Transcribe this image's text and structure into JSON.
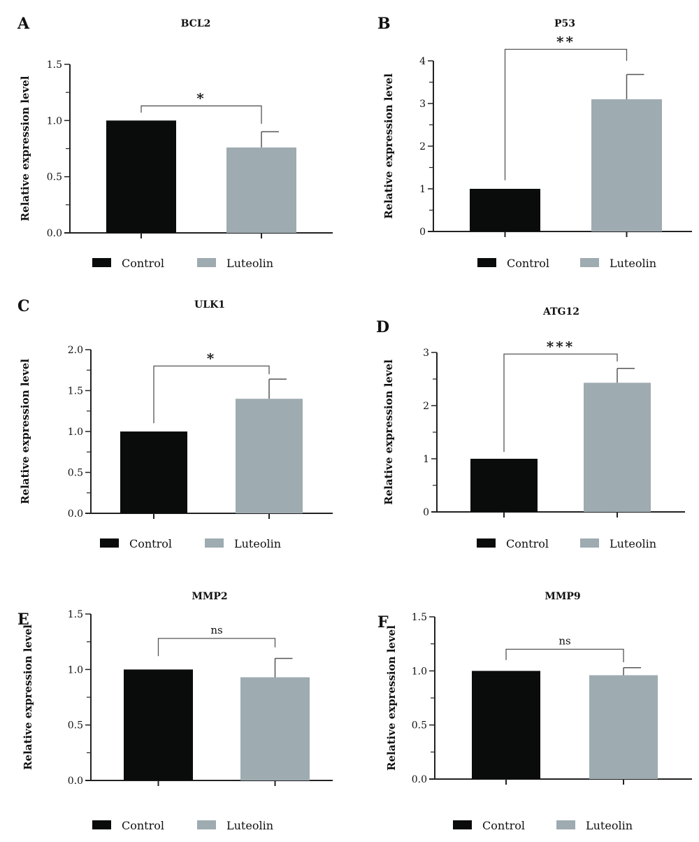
{
  "chart_data": [
    {
      "panel": "A",
      "type": "bar",
      "title": "BCL2",
      "ylabel": "Relative expression level",
      "ylim": [
        0,
        1.5
      ],
      "yticks": [
        "0.0",
        "0.5",
        "1.0",
        "1.5"
      ],
      "categories": [
        "Control",
        "Luteolin"
      ],
      "values": [
        1.0,
        0.76
      ],
      "error_upper": [
        0,
        0.9
      ],
      "significance": "*",
      "bracket": {
        "level": 1.13,
        "left_end": 1.07,
        "right_end": 0.97
      }
    },
    {
      "panel": "B",
      "type": "bar",
      "title": "P53",
      "ylabel": "Relative expression level",
      "ylim": [
        0,
        4
      ],
      "yticks": [
        "0",
        "1",
        "2",
        "3",
        "4"
      ],
      "categories": [
        "Control",
        "Luteolin"
      ],
      "values": [
        1.0,
        3.1
      ],
      "error_upper": [
        0,
        3.68
      ],
      "significance": "**",
      "bracket": {
        "level": 4.27,
        "left_end": 1.2,
        "right_end": 4.0
      }
    },
    {
      "panel": "C",
      "type": "bar",
      "title": "ULK1",
      "ylabel": "Relative expression level",
      "ylim": [
        0,
        2.0
      ],
      "yticks": [
        "0.0",
        "0.5",
        "1.0",
        "1.5",
        "2.0"
      ],
      "categories": [
        "Control",
        "Luteolin"
      ],
      "values": [
        1.0,
        1.4
      ],
      "error_upper": [
        0,
        1.64
      ],
      "significance": "*",
      "bracket": {
        "level": 1.8,
        "left_end": 1.1,
        "right_end": 1.7
      }
    },
    {
      "panel": "D",
      "type": "bar",
      "title": "ATG12",
      "ylabel": "Relative expression level",
      "ylim": [
        0,
        3
      ],
      "yticks": [
        "0",
        "1",
        "2",
        "3"
      ],
      "categories": [
        "Control",
        "Luteolin"
      ],
      "values": [
        1.0,
        2.43
      ],
      "error_upper": [
        0,
        2.7
      ],
      "significance": "***",
      "bracket": {
        "level": 2.97,
        "left_end": 1.13,
        "right_end": 2.83
      }
    },
    {
      "panel": "E",
      "type": "bar",
      "title": "MMP2",
      "ylabel": "Relative expression level",
      "ylim": [
        0,
        1.5
      ],
      "yticks": [
        "0.0",
        "0.5",
        "1.0",
        "1.5"
      ],
      "categories": [
        "Control",
        "Luteolin"
      ],
      "values": [
        1.0,
        0.93
      ],
      "error_upper": [
        0,
        1.1
      ],
      "significance": "ns",
      "bracket": {
        "level": 1.28,
        "left_end": 1.12,
        "right_end": 1.2
      }
    },
    {
      "panel": "F",
      "type": "bar",
      "title": "MMP9",
      "ylabel": "Relative expression level",
      "ylim": [
        0,
        1.5
      ],
      "yticks": [
        "0.0",
        "0.5",
        "1.0",
        "1.5"
      ],
      "categories": [
        "Control",
        "Luteolin"
      ],
      "values": [
        1.0,
        0.96
      ],
      "error_upper": [
        0,
        1.03
      ],
      "significance": "ns",
      "bracket": {
        "level": 1.2,
        "left_end": 1.1,
        "right_end": 1.08
      }
    }
  ],
  "legend": [
    "Control",
    "Luteolin"
  ],
  "colors": {
    "Control": "#0a0c0b",
    "Luteolin": "#9eabb1",
    "axis": "#222222"
  }
}
